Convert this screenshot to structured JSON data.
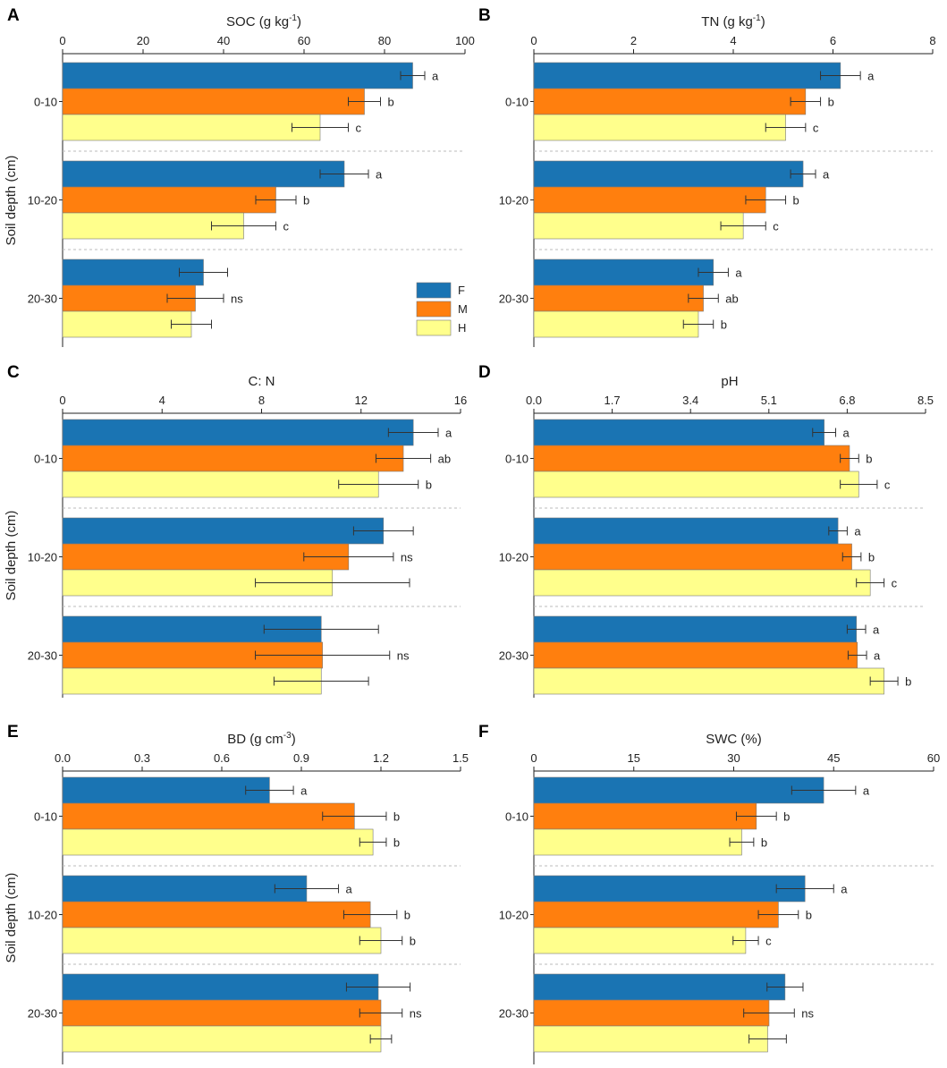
{
  "chart_data": [
    {
      "type": "bar",
      "panel": "A",
      "title": "SOC (g kg",
      "title_superscript": "-1",
      "title_tail": ")",
      "ylabel": "Soil depth (cm)",
      "xlim": [
        0,
        100
      ],
      "ticks": [
        0,
        20,
        40,
        60,
        80,
        100
      ],
      "tick_labels": [
        "0",
        "20",
        "40",
        "60",
        "80",
        "100"
      ],
      "categories": [
        "0-10",
        "10-20",
        "20-30"
      ],
      "series": [
        {
          "name": "F",
          "values": [
            87,
            70,
            35
          ],
          "errors": [
            3,
            6,
            6
          ]
        },
        {
          "name": "M",
          "values": [
            75,
            53,
            33
          ],
          "errors": [
            4,
            5,
            7
          ]
        },
        {
          "name": "H",
          "values": [
            64,
            45,
            32
          ],
          "errors": [
            7,
            8,
            5
          ]
        }
      ],
      "annotations": [
        [
          "a",
          "b",
          "c"
        ],
        [
          "a",
          "b",
          "c"
        ],
        [
          "",
          "ns",
          ""
        ]
      ],
      "legend": {
        "position": "right",
        "entries": [
          "F",
          "M",
          "H"
        ]
      }
    },
    {
      "type": "bar",
      "panel": "B",
      "title": "TN (g kg",
      "title_superscript": "-1",
      "title_tail": ")",
      "ylabel": "",
      "xlim": [
        0,
        8
      ],
      "ticks": [
        0,
        2,
        4,
        6,
        8
      ],
      "tick_labels": [
        "0",
        "2",
        "4",
        "6",
        "8"
      ],
      "categories": [
        "0-10",
        "10-20",
        "20-30"
      ],
      "series": [
        {
          "name": "F",
          "values": [
            6.15,
            5.4,
            3.6
          ],
          "errors": [
            0.4,
            0.25,
            0.3
          ]
        },
        {
          "name": "M",
          "values": [
            5.45,
            4.65,
            3.4
          ],
          "errors": [
            0.3,
            0.4,
            0.3
          ]
        },
        {
          "name": "H",
          "values": [
            5.05,
            4.2,
            3.3
          ],
          "errors": [
            0.4,
            0.45,
            0.3
          ]
        }
      ],
      "annotations": [
        [
          "a",
          "b",
          "c"
        ],
        [
          "a",
          "b",
          "c"
        ],
        [
          "a",
          "ab",
          "b"
        ]
      ]
    },
    {
      "type": "bar",
      "panel": "C",
      "title": "C: N",
      "title_superscript": "",
      "title_tail": "",
      "ylabel": "Soil depth (cm)",
      "xlim": [
        0,
        16
      ],
      "ticks": [
        0,
        4,
        8,
        12,
        16
      ],
      "tick_labels": [
        "0",
        "4",
        "8",
        "12",
        "16"
      ],
      "categories": [
        "0-10",
        "10-20",
        "20-30"
      ],
      "series": [
        {
          "name": "F",
          "values": [
            14.1,
            12.9,
            10.4
          ],
          "errors": [
            1.0,
            1.2,
            2.3
          ]
        },
        {
          "name": "M",
          "values": [
            13.7,
            11.5,
            10.45
          ],
          "errors": [
            1.1,
            1.8,
            2.7
          ]
        },
        {
          "name": "H",
          "values": [
            12.7,
            10.85,
            10.4
          ],
          "errors": [
            1.6,
            3.1,
            1.9
          ]
        }
      ],
      "annotations": [
        [
          "a",
          "ab",
          "b"
        ],
        [
          "",
          "ns",
          ""
        ],
        [
          "",
          "ns",
          ""
        ]
      ]
    },
    {
      "type": "bar",
      "panel": "D",
      "title": "pH",
      "title_superscript": "",
      "title_tail": "",
      "ylabel": "",
      "xlim": [
        0,
        8.5
      ],
      "ticks": [
        0,
        1.7,
        3.4,
        5.1,
        6.8,
        8.5
      ],
      "tick_labels": [
        "0.0",
        "1.7",
        "3.4",
        "5.1",
        "6.8",
        "8.5"
      ],
      "categories": [
        "0-10",
        "10-20",
        "20-30"
      ],
      "series": [
        {
          "name": "F",
          "values": [
            6.3,
            6.6,
            7.0
          ],
          "errors": [
            0.25,
            0.2,
            0.2
          ]
        },
        {
          "name": "M",
          "values": [
            6.85,
            6.9,
            7.02
          ],
          "errors": [
            0.2,
            0.2,
            0.2
          ]
        },
        {
          "name": "H",
          "values": [
            7.05,
            7.3,
            7.6
          ],
          "errors": [
            0.4,
            0.3,
            0.3
          ]
        }
      ],
      "annotations": [
        [
          "a",
          "b",
          "c"
        ],
        [
          "a",
          "b",
          "c"
        ],
        [
          "a",
          "a",
          "b"
        ]
      ]
    },
    {
      "type": "bar",
      "panel": "E",
      "title": "BD (g cm",
      "title_superscript": "-3",
      "title_tail": ")",
      "ylabel": "Soil depth (cm)",
      "xlim": [
        0,
        1.5
      ],
      "ticks": [
        0,
        0.3,
        0.6,
        0.9,
        1.2,
        1.5
      ],
      "tick_labels": [
        "0.0",
        "0.3",
        "0.6",
        "0.9",
        "1.2",
        "1.5"
      ],
      "categories": [
        "0-10",
        "10-20",
        "20-30"
      ],
      "series": [
        {
          "name": "F",
          "values": [
            0.78,
            0.92,
            1.19
          ],
          "errors": [
            0.09,
            0.12,
            0.12
          ]
        },
        {
          "name": "M",
          "values": [
            1.1,
            1.16,
            1.2
          ],
          "errors": [
            0.12,
            0.1,
            0.08
          ]
        },
        {
          "name": "H",
          "values": [
            1.17,
            1.2,
            1.2
          ],
          "errors": [
            0.05,
            0.08,
            0.04
          ]
        }
      ],
      "annotations": [
        [
          "a",
          "b",
          "b"
        ],
        [
          "a",
          "b",
          "b"
        ],
        [
          "",
          "ns",
          ""
        ]
      ]
    },
    {
      "type": "bar",
      "panel": "F",
      "title": "SWC (%)",
      "title_superscript": "",
      "title_tail": "",
      "ylabel": "",
      "xlim": [
        0,
        60
      ],
      "ticks": [
        0,
        15,
        30,
        45,
        60
      ],
      "tick_labels": [
        "0",
        "15",
        "30",
        "45",
        "60"
      ],
      "categories": [
        "0-10",
        "10-20",
        "20-30"
      ],
      "series": [
        {
          "name": "F",
          "values": [
            43.5,
            40.7,
            37.7
          ],
          "errors": [
            4.8,
            4.3,
            2.7
          ]
        },
        {
          "name": "M",
          "values": [
            33.4,
            36.7,
            35.3
          ],
          "errors": [
            3.0,
            3.0,
            3.8
          ]
        },
        {
          "name": "H",
          "values": [
            31.2,
            31.8,
            35.1
          ],
          "errors": [
            1.8,
            1.9,
            2.8
          ]
        }
      ],
      "annotations": [
        [
          "a",
          "b",
          "b"
        ],
        [
          "a",
          "b",
          "c"
        ],
        [
          "",
          "ns",
          ""
        ]
      ]
    }
  ],
  "colors": {
    "F": "#1a74b3",
    "M": "#ff7f0e",
    "H": "#ffff8c"
  }
}
